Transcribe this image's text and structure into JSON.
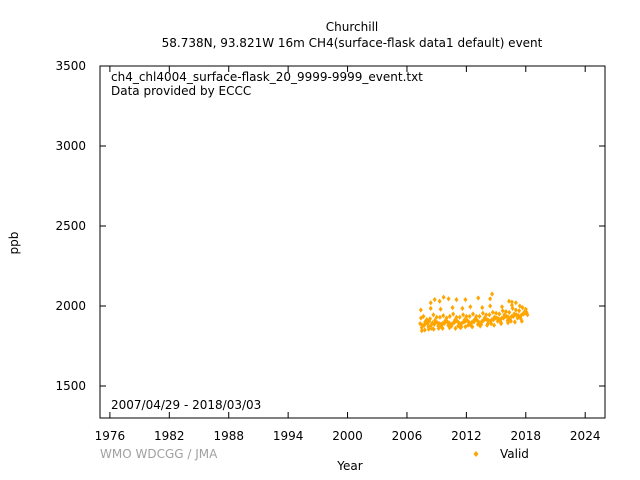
{
  "chart_data": {
    "type": "scatter",
    "title": "Churchill",
    "subtitle": "58.738N, 93.821W 16m    CH4(surface-flask data1 default) event",
    "xlabel": "Year",
    "ylabel": "ppb",
    "xlim": [
      1975,
      2026
    ],
    "ylim": [
      1300,
      3500
    ],
    "x_ticks": [
      1976,
      1982,
      1988,
      1994,
      2000,
      2006,
      2012,
      2018,
      2024
    ],
    "y_ticks": [
      1500,
      2000,
      2500,
      3000,
      3500
    ],
    "grid": false,
    "legend_position": "bottom-right",
    "annotations": [
      "ch4_chl4004_surface-flask_20_9999-9999_event.txt",
      "Data provided by ECCC",
      "2007/04/29 - 2018/03/03"
    ],
    "credit": "WMO WDCGG / JMA",
    "series": [
      {
        "name": "Valid",
        "color": "#ffa500",
        "marker": "diamond",
        "x": [
          2007.33,
          2007.42,
          2007.5,
          2007.58,
          2007.67,
          2007.75,
          2007.83,
          2007.92,
          2008.0,
          2008.08,
          2008.17,
          2008.25,
          2008.33,
          2008.42,
          2008.5,
          2008.58,
          2008.67,
          2008.75,
          2008.83,
          2008.92,
          2009.0,
          2009.08,
          2009.17,
          2009.25,
          2009.33,
          2009.42,
          2009.5,
          2009.58,
          2009.67,
          2009.75,
          2009.83,
          2009.92,
          2010.0,
          2010.08,
          2010.17,
          2010.25,
          2010.33,
          2010.42,
          2010.5,
          2010.58,
          2010.67,
          2010.75,
          2010.83,
          2010.92,
          2011.0,
          2011.08,
          2011.17,
          2011.25,
          2011.33,
          2011.42,
          2011.5,
          2011.58,
          2011.67,
          2011.75,
          2011.83,
          2011.92,
          2012.0,
          2012.08,
          2012.17,
          2012.25,
          2012.33,
          2012.42,
          2012.5,
          2012.58,
          2012.67,
          2012.75,
          2012.83,
          2012.92,
          2013.0,
          2013.08,
          2013.17,
          2013.25,
          2013.33,
          2013.42,
          2013.5,
          2013.58,
          2013.67,
          2013.75,
          2013.83,
          2013.92,
          2014.0,
          2014.08,
          2014.17,
          2014.25,
          2014.33,
          2014.42,
          2014.5,
          2014.58,
          2014.67,
          2014.75,
          2014.83,
          2014.92,
          2015.0,
          2015.08,
          2015.17,
          2015.25,
          2015.33,
          2015.42,
          2015.5,
          2015.58,
          2015.67,
          2015.75,
          2015.83,
          2015.92,
          2016.0,
          2016.08,
          2016.17,
          2016.25,
          2016.33,
          2016.42,
          2016.5,
          2016.58,
          2016.67,
          2016.75,
          2016.83,
          2016.92,
          2017.0,
          2017.08,
          2017.17,
          2017.25,
          2017.33,
          2017.42,
          2017.5,
          2017.58,
          2017.67,
          2017.75,
          2017.83,
          2017.92,
          2018.0,
          2018.08,
          2018.17,
          2007.5,
          2007.8,
          2008.2,
          2008.7,
          2009.2,
          2009.6,
          2010.3,
          2010.9,
          2011.4,
          2011.9,
          2012.6,
          2013.4,
          2014.1,
          2014.8,
          2015.5,
          2016.2,
          2016.9,
          2017.6,
          2007.4,
          2008.4,
          2009.4,
          2010.6,
          2011.6,
          2012.4,
          2013.6,
          2014.4,
          2015.6,
          2016.6,
          2017.4,
          2008.4,
          2008.8,
          2009.3,
          2009.7,
          2010.2,
          2011.0,
          2011.9,
          2013.2,
          2014.4,
          2014.6,
          2016.3,
          2016.6,
          2017.0
        ],
        "y": [
          1890,
          1925,
          1865,
          1880,
          1935,
          1880,
          1900,
          1895,
          1915,
          1890,
          1870,
          1905,
          1920,
          1880,
          1860,
          1895,
          1945,
          1885,
          1910,
          1900,
          1930,
          1895,
          1875,
          1890,
          1930,
          1885,
          1870,
          1890,
          1940,
          1890,
          1905,
          1905,
          1925,
          1900,
          1880,
          1895,
          1935,
          1880,
          1875,
          1890,
          1950,
          1895,
          1910,
          1905,
          1930,
          1905,
          1875,
          1895,
          1930,
          1885,
          1870,
          1895,
          1945,
          1900,
          1915,
          1905,
          1935,
          1910,
          1880,
          1900,
          1935,
          1890,
          1875,
          1900,
          1950,
          1900,
          1915,
          1915,
          1935,
          1910,
          1885,
          1900,
          1935,
          1890,
          1885,
          1905,
          1955,
          1910,
          1925,
          1920,
          1945,
          1915,
          1890,
          1910,
          1945,
          1905,
          1890,
          1915,
          1960,
          1915,
          1930,
          1925,
          1955,
          1925,
          1905,
          1920,
          1950,
          1910,
          1895,
          1925,
          1970,
          1925,
          1945,
          1935,
          1965,
          1935,
          1910,
          1930,
          1960,
          1915,
          1905,
          1935,
          1985,
          1935,
          1950,
          1945,
          1975,
          1945,
          1925,
          1940,
          1970,
          1930,
          1920,
          1945,
          1990,
          1950,
          1960,
          1955,
          1980,
          1960,
          1945,
          1845,
          1850,
          1855,
          1855,
          1860,
          1860,
          1865,
          1860,
          1865,
          1870,
          1870,
          1875,
          1880,
          1880,
          1890,
          1895,
          1900,
          1905,
          1975,
          1985,
          1980,
          1990,
          1985,
          1995,
          1990,
          2000,
          1995,
          2005,
          2000,
          2020,
          2040,
          2030,
          2055,
          2045,
          2040,
          2040,
          2050,
          2045,
          2075,
          2030,
          2025,
          2020
        ]
      }
    ]
  }
}
